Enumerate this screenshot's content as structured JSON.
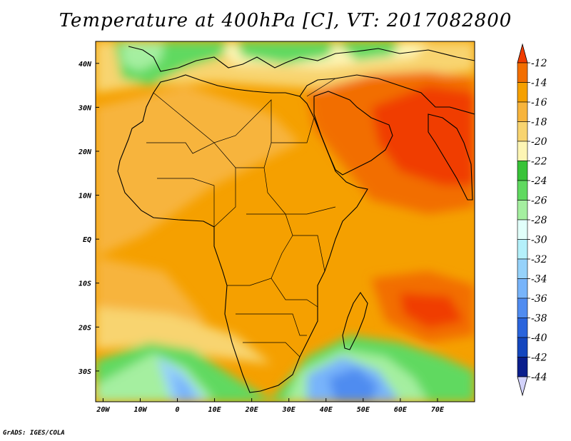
{
  "title": "Temperature at 400hPa [C], VT: 2017082800",
  "credit": "GrADS: IGES/COLA",
  "map": {
    "lon_range": [
      -22,
      80
    ],
    "lat_range": [
      -37,
      45
    ],
    "lat_ticks": [
      {
        "value": 40,
        "label": "40N"
      },
      {
        "value": 30,
        "label": "30N"
      },
      {
        "value": 20,
        "label": "20N"
      },
      {
        "value": 10,
        "label": "10N"
      },
      {
        "value": 0,
        "label": "EQ"
      },
      {
        "value": -10,
        "label": "10S"
      },
      {
        "value": -20,
        "label": "20S"
      },
      {
        "value": -30,
        "label": "30S"
      }
    ],
    "lon_ticks": [
      {
        "value": -20,
        "label": "20W"
      },
      {
        "value": -10,
        "label": "10W"
      },
      {
        "value": 0,
        "label": "0"
      },
      {
        "value": 10,
        "label": "10E"
      },
      {
        "value": 20,
        "label": "20E"
      },
      {
        "value": 30,
        "label": "30E"
      },
      {
        "value": 40,
        "label": "40E"
      },
      {
        "value": 50,
        "label": "50E"
      },
      {
        "value": 60,
        "label": "60E"
      },
      {
        "value": 70,
        "label": "70E"
      }
    ]
  },
  "colorbar": {
    "levels": [
      {
        "label": "-12",
        "color": "#f03c00"
      },
      {
        "label": "-14",
        "color": "#f26e00"
      },
      {
        "label": "-16",
        "color": "#f5a000"
      },
      {
        "label": "-18",
        "color": "#f7b43c"
      },
      {
        "label": "-20",
        "color": "#f8d470"
      },
      {
        "label": "-22",
        "color": "#fdf5b4"
      },
      {
        "label": "-24",
        "color": "#38c338"
      },
      {
        "label": "-26",
        "color": "#60d960"
      },
      {
        "label": "-28",
        "color": "#a5efa0"
      },
      {
        "label": "-30",
        "color": "#e1fffa"
      },
      {
        "label": "-32",
        "color": "#b4f0fa"
      },
      {
        "label": "-34",
        "color": "#96d2fa"
      },
      {
        "label": "-36",
        "color": "#78b4fa"
      },
      {
        "label": "-38",
        "color": "#508cf0"
      },
      {
        "label": "-40",
        "color": "#2a64dc"
      },
      {
        "label": "-42",
        "color": "#1446be"
      },
      {
        "label": "-44",
        "color": "#0a1e8c"
      }
    ],
    "top_cap_color": "#f03c00",
    "bottom_cap_color": "#d2d2fa"
  }
}
